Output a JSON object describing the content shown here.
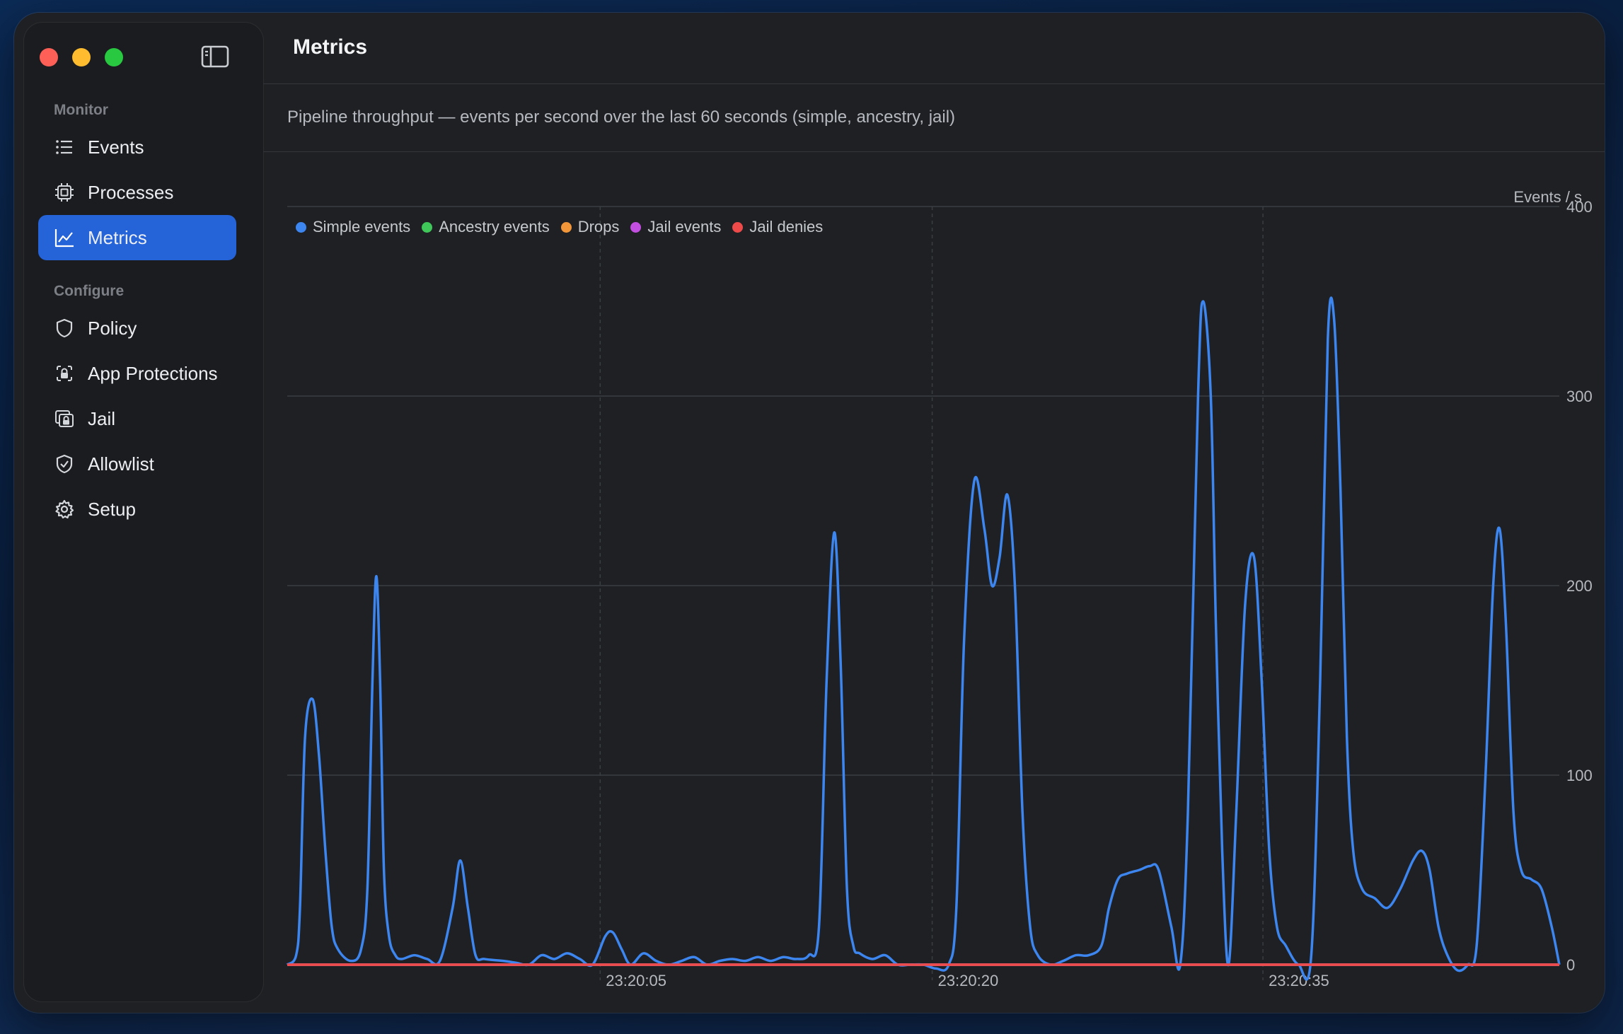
{
  "window": {
    "title": "Metrics"
  },
  "sidebar": {
    "sections": [
      {
        "label": "Monitor",
        "items": [
          {
            "label": "Events",
            "icon": "list-icon",
            "active": false
          },
          {
            "label": "Processes",
            "icon": "cpu-icon",
            "active": false
          },
          {
            "label": "Metrics",
            "icon": "chart-line-icon",
            "active": true
          }
        ]
      },
      {
        "label": "Configure",
        "items": [
          {
            "label": "Policy",
            "icon": "shield-icon",
            "active": false
          },
          {
            "label": "App Protections",
            "icon": "app-lock-icon",
            "active": false
          },
          {
            "label": "Jail",
            "icon": "jail-icon",
            "active": false
          },
          {
            "label": "Allowlist",
            "icon": "shield-check-icon",
            "active": false
          },
          {
            "label": "Setup",
            "icon": "gear-icon",
            "active": false
          }
        ]
      }
    ]
  },
  "header": {
    "title": "Metrics"
  },
  "subtitle": "Pipeline throughput — events per second over the last 60 seconds (simple, ancestry, jail)",
  "colors": {
    "simple": "#3d86f0",
    "ancestry": "#3fc75a",
    "drops": "#f2963a",
    "jail_events": "#c24fe0",
    "jail_denies": "#ef4a4a",
    "accent": "#2563d8"
  },
  "chart_data": {
    "type": "line",
    "ylabel": "Events / s",
    "ylim": [
      0,
      400
    ],
    "yticks": [
      0,
      100,
      200,
      300,
      400
    ],
    "x_tick_labels": [
      "23:20:05",
      "23:20:20",
      "23:20:35"
    ],
    "legend_placement": "top-left",
    "grid": true,
    "series": [
      {
        "name": "Simple events",
        "color": "#3d86f0",
        "points": [
          [
            0,
            0
          ],
          [
            0.7,
            5
          ],
          [
            1,
            30
          ],
          [
            1.4,
            120
          ],
          [
            2,
            140
          ],
          [
            2.5,
            110
          ],
          [
            3,
            60
          ],
          [
            3.5,
            20
          ],
          [
            4,
            8
          ],
          [
            5,
            2
          ],
          [
            5.8,
            8
          ],
          [
            6.3,
            40
          ],
          [
            6.7,
            150
          ],
          [
            7,
            205
          ],
          [
            7.3,
            150
          ],
          [
            7.6,
            50
          ],
          [
            8,
            15
          ],
          [
            8.5,
            5
          ],
          [
            9,
            3
          ],
          [
            10,
            5
          ],
          [
            11,
            3
          ],
          [
            12,
            2
          ],
          [
            13,
            30
          ],
          [
            13.6,
            55
          ],
          [
            14.2,
            30
          ],
          [
            14.8,
            5
          ],
          [
            15.5,
            3
          ],
          [
            17,
            2
          ],
          [
            18,
            1
          ],
          [
            19,
            0
          ],
          [
            20,
            5
          ],
          [
            21,
            3
          ],
          [
            22,
            6
          ],
          [
            23,
            3
          ],
          [
            24,
            0
          ],
          [
            25,
            15
          ],
          [
            25.6,
            17
          ],
          [
            26.3,
            8
          ],
          [
            27,
            0
          ],
          [
            28,
            6
          ],
          [
            29,
            2
          ],
          [
            30,
            0
          ],
          [
            31,
            2
          ],
          [
            32,
            4
          ],
          [
            33,
            0
          ],
          [
            34,
            2
          ],
          [
            35,
            3
          ],
          [
            36,
            2
          ],
          [
            37,
            4
          ],
          [
            38,
            2
          ],
          [
            39,
            4
          ],
          [
            40,
            3
          ],
          [
            41,
            5
          ],
          [
            41.8,
            20
          ],
          [
            42.4,
            150
          ],
          [
            43,
            228
          ],
          [
            43.5,
            160
          ],
          [
            44,
            40
          ],
          [
            44.5,
            10
          ],
          [
            45,
            6
          ],
          [
            46,
            3
          ],
          [
            47,
            5
          ],
          [
            48,
            0
          ],
          [
            49,
            0
          ],
          [
            50,
            0
          ],
          [
            51,
            -2
          ],
          [
            52,
            0
          ],
          [
            52.6,
            30
          ],
          [
            53.2,
            170
          ],
          [
            54,
            255
          ],
          [
            54.8,
            230
          ],
          [
            55.4,
            200
          ],
          [
            56,
            215
          ],
          [
            56.6,
            248
          ],
          [
            57.2,
            200
          ],
          [
            57.8,
            80
          ],
          [
            58.4,
            20
          ],
          [
            59,
            5
          ],
          [
            60,
            0
          ],
          [
            61,
            2
          ],
          [
            62,
            5
          ],
          [
            63,
            5
          ],
          [
            64,
            10
          ],
          [
            64.6,
            30
          ],
          [
            65.3,
            45
          ],
          [
            66,
            48
          ],
          [
            67,
            50
          ],
          [
            67.8,
            52
          ],
          [
            68.5,
            50
          ],
          [
            69.5,
            20
          ],
          [
            70.2,
            0
          ],
          [
            70.8,
            80
          ],
          [
            71.6,
            300
          ],
          [
            72,
            350
          ],
          [
            72.6,
            300
          ],
          [
            73,
            180
          ],
          [
            73.5,
            60
          ],
          [
            74,
            0
          ],
          [
            74.6,
            80
          ],
          [
            75.3,
            190
          ],
          [
            76,
            215
          ],
          [
            76.6,
            150
          ],
          [
            77.2,
            60
          ],
          [
            77.8,
            20
          ],
          [
            78.5,
            10
          ],
          [
            79.5,
            0
          ],
          [
            80.5,
            5
          ],
          [
            81.2,
            150
          ],
          [
            81.8,
            330
          ],
          [
            82.3,
            340
          ],
          [
            82.8,
            250
          ],
          [
            83.3,
            120
          ],
          [
            83.8,
            60
          ],
          [
            84.5,
            40
          ],
          [
            85.5,
            35
          ],
          [
            86.5,
            30
          ],
          [
            87.5,
            40
          ],
          [
            88.5,
            55
          ],
          [
            89.2,
            60
          ],
          [
            89.8,
            50
          ],
          [
            90.5,
            20
          ],
          [
            91.2,
            5
          ],
          [
            92,
            -3
          ],
          [
            92.8,
            0
          ],
          [
            93.5,
            10
          ],
          [
            94.2,
            100
          ],
          [
            94.8,
            200
          ],
          [
            95.3,
            230
          ],
          [
            95.8,
            180
          ],
          [
            96.4,
            80
          ],
          [
            97,
            50
          ],
          [
            97.8,
            45
          ],
          [
            98.6,
            40
          ],
          [
            99.4,
            20
          ],
          [
            100,
            0
          ]
        ]
      },
      {
        "name": "Ancestry events",
        "color": "#3fc75a",
        "points": [
          [
            0,
            0
          ],
          [
            100,
            0
          ]
        ]
      },
      {
        "name": "Drops",
        "color": "#f2963a",
        "points": [
          [
            0,
            0
          ],
          [
            100,
            0
          ]
        ]
      },
      {
        "name": "Jail events",
        "color": "#c24fe0",
        "points": [
          [
            0,
            0
          ],
          [
            100,
            0
          ]
        ]
      },
      {
        "name": "Jail denies",
        "color": "#ef4a4a",
        "points": [
          [
            0,
            0
          ],
          [
            100,
            0
          ]
        ]
      }
    ]
  }
}
